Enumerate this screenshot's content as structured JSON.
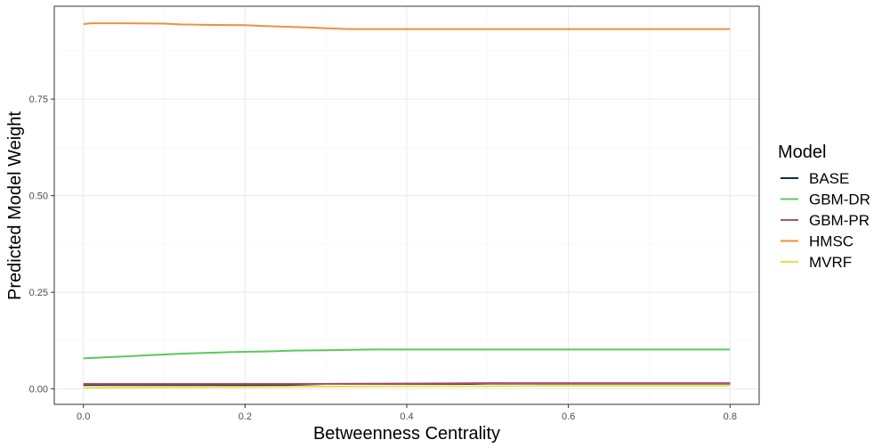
{
  "chart_data": {
    "type": "line",
    "xlabel": "Betweenness Centrality",
    "ylabel": "Predicted Model Weight",
    "xlim": [
      -0.036,
      0.836
    ],
    "ylim": [
      -0.04,
      0.99
    ],
    "x_ticks": [
      0.0,
      0.2,
      0.4,
      0.6,
      0.8
    ],
    "x_tick_labels": [
      "0.0",
      "0.2",
      "0.4",
      "0.6",
      "0.8"
    ],
    "y_ticks": [
      0.0,
      0.25,
      0.5,
      0.75
    ],
    "y_tick_labels": [
      "0.00",
      "0.25",
      "0.50",
      "0.75"
    ],
    "grid": true,
    "legend_position": "right",
    "legend_title": "Model",
    "series": [
      {
        "name": "BASE",
        "color": "#1a2b3c",
        "x": [
          0.0,
          0.1,
          0.2,
          0.25,
          0.3,
          0.4,
          0.48,
          0.5,
          0.6,
          0.7,
          0.8
        ],
        "y": [
          0.01,
          0.01,
          0.01,
          0.01,
          0.013,
          0.013,
          0.013,
          0.014,
          0.014,
          0.014,
          0.014
        ]
      },
      {
        "name": "GBM-DR",
        "color": "#5cc85c",
        "x": [
          0.0,
          0.02,
          0.05,
          0.08,
          0.1,
          0.12,
          0.15,
          0.18,
          0.2,
          0.23,
          0.26,
          0.3,
          0.33,
          0.36,
          0.4,
          0.5,
          0.6,
          0.7,
          0.8
        ],
        "y": [
          0.079,
          0.081,
          0.084,
          0.087,
          0.089,
          0.091,
          0.093,
          0.095,
          0.096,
          0.097,
          0.099,
          0.1,
          0.101,
          0.102,
          0.102,
          0.102,
          0.102,
          0.102,
          0.102
        ]
      },
      {
        "name": "GBM-PR",
        "color": "#b0506e",
        "x": [
          0.0,
          0.1,
          0.2,
          0.3,
          0.4,
          0.5,
          0.6,
          0.7,
          0.8
        ],
        "y": [
          0.013,
          0.013,
          0.013,
          0.013,
          0.014,
          0.015,
          0.015,
          0.015,
          0.015
        ]
      },
      {
        "name": "HMSC",
        "color": "#f0903a",
        "x": [
          0.0,
          0.01,
          0.05,
          0.1,
          0.12,
          0.15,
          0.2,
          0.22,
          0.25,
          0.28,
          0.3,
          0.33,
          0.4,
          0.5,
          0.6,
          0.7,
          0.8
        ],
        "y": [
          0.944,
          0.946,
          0.946,
          0.945,
          0.943,
          0.942,
          0.941,
          0.939,
          0.937,
          0.935,
          0.933,
          0.931,
          0.931,
          0.931,
          0.931,
          0.931,
          0.931
        ]
      },
      {
        "name": "MVRF",
        "color": "#e6e04a",
        "x": [
          0.0,
          0.1,
          0.2,
          0.3,
          0.4,
          0.5,
          0.6,
          0.7,
          0.8
        ],
        "y": [
          0.003,
          0.004,
          0.005,
          0.006,
          0.007,
          0.007,
          0.008,
          0.008,
          0.008
        ]
      }
    ]
  },
  "colors": {
    "panel_border": "#333333",
    "grid_major": "#ebebeb",
    "grid_minor": "#f5f5f5",
    "tick_mark": "#333333"
  }
}
